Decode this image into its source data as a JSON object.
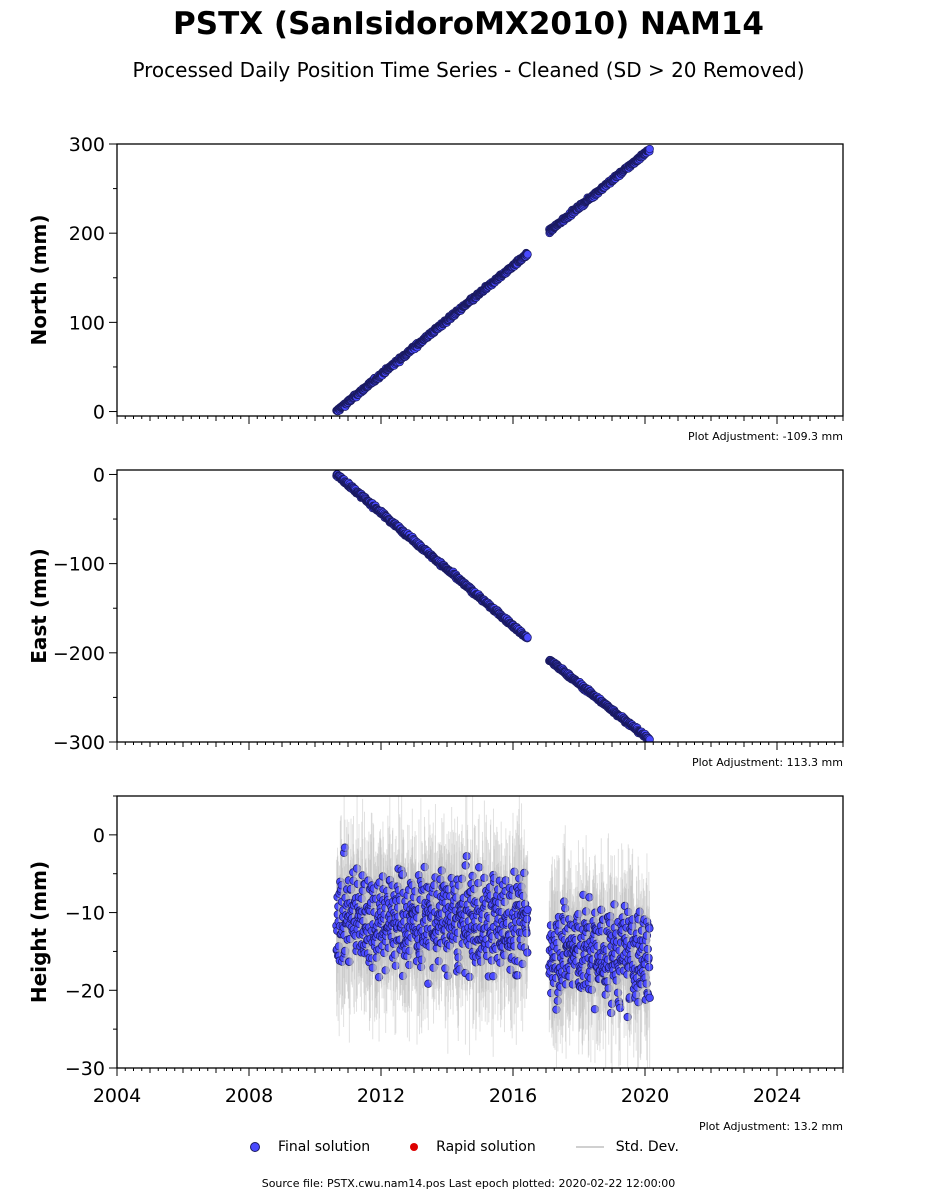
{
  "title": "PSTX (SanIsidoroMX2010) NAM14",
  "subtitle": "Processed Daily Position Time Series - Cleaned (SD > 20 Removed)",
  "colors": {
    "final": "#4a4aff",
    "final_edge": "#1a1a60",
    "rapid": "#dd0000",
    "stddev": "#bdbdbd"
  },
  "chart_data": [
    {
      "type": "scatter",
      "ylabel": "North (mm)",
      "xlim": [
        2004,
        2026
      ],
      "ylim": [
        -5,
        300
      ],
      "yticks": [
        0,
        100,
        200,
        300
      ],
      "adjustment": "Plot Adjustment: -109.3 mm",
      "segments": [
        {
          "x0": 2010.65,
          "x1": 2016.45,
          "y0": 0,
          "y1": 177,
          "noise": 1.5
        },
        {
          "x0": 2017.1,
          "x1": 2020.15,
          "y0": 202,
          "y1": 294,
          "noise": 1.5
        }
      ]
    },
    {
      "type": "scatter",
      "ylabel": "East (mm)",
      "xlim": [
        2004,
        2026
      ],
      "ylim": [
        -300,
        5
      ],
      "yticks": [
        0,
        -100,
        -200,
        -300
      ],
      "adjustment": "Plot Adjustment: 113.3 mm",
      "segments": [
        {
          "x0": 2010.65,
          "x1": 2016.45,
          "y0": 0,
          "y1": -184,
          "noise": 1.5
        },
        {
          "x0": 2017.1,
          "x1": 2020.15,
          "y0": -208,
          "y1": -298,
          "noise": 1.5
        }
      ]
    },
    {
      "type": "scatter",
      "ylabel": "Height (mm)",
      "xlim": [
        2004,
        2026
      ],
      "ylim": [
        -30,
        5
      ],
      "yticks": [
        0,
        -10,
        -20,
        -30
      ],
      "xticks": [
        2004,
        2008,
        2012,
        2016,
        2020,
        2024
      ],
      "adjustment": "Plot Adjustment: 13.2 mm",
      "segments": [
        {
          "x0": 2010.65,
          "x1": 2016.45,
          "y0": -10.5,
          "y1": -11.5,
          "noise": 4.5
        },
        {
          "x0": 2017.1,
          "x1": 2020.15,
          "y0": -14.5,
          "y1": -16,
          "noise": 4.5
        }
      ]
    }
  ],
  "legend": {
    "final": "Final solution",
    "rapid": "Rapid solution",
    "stddev": "Std. Dev."
  },
  "footer": "Source file: PSTX.cwu.nam14.pos  Last epoch plotted: 2020-02-22 12:00:00"
}
